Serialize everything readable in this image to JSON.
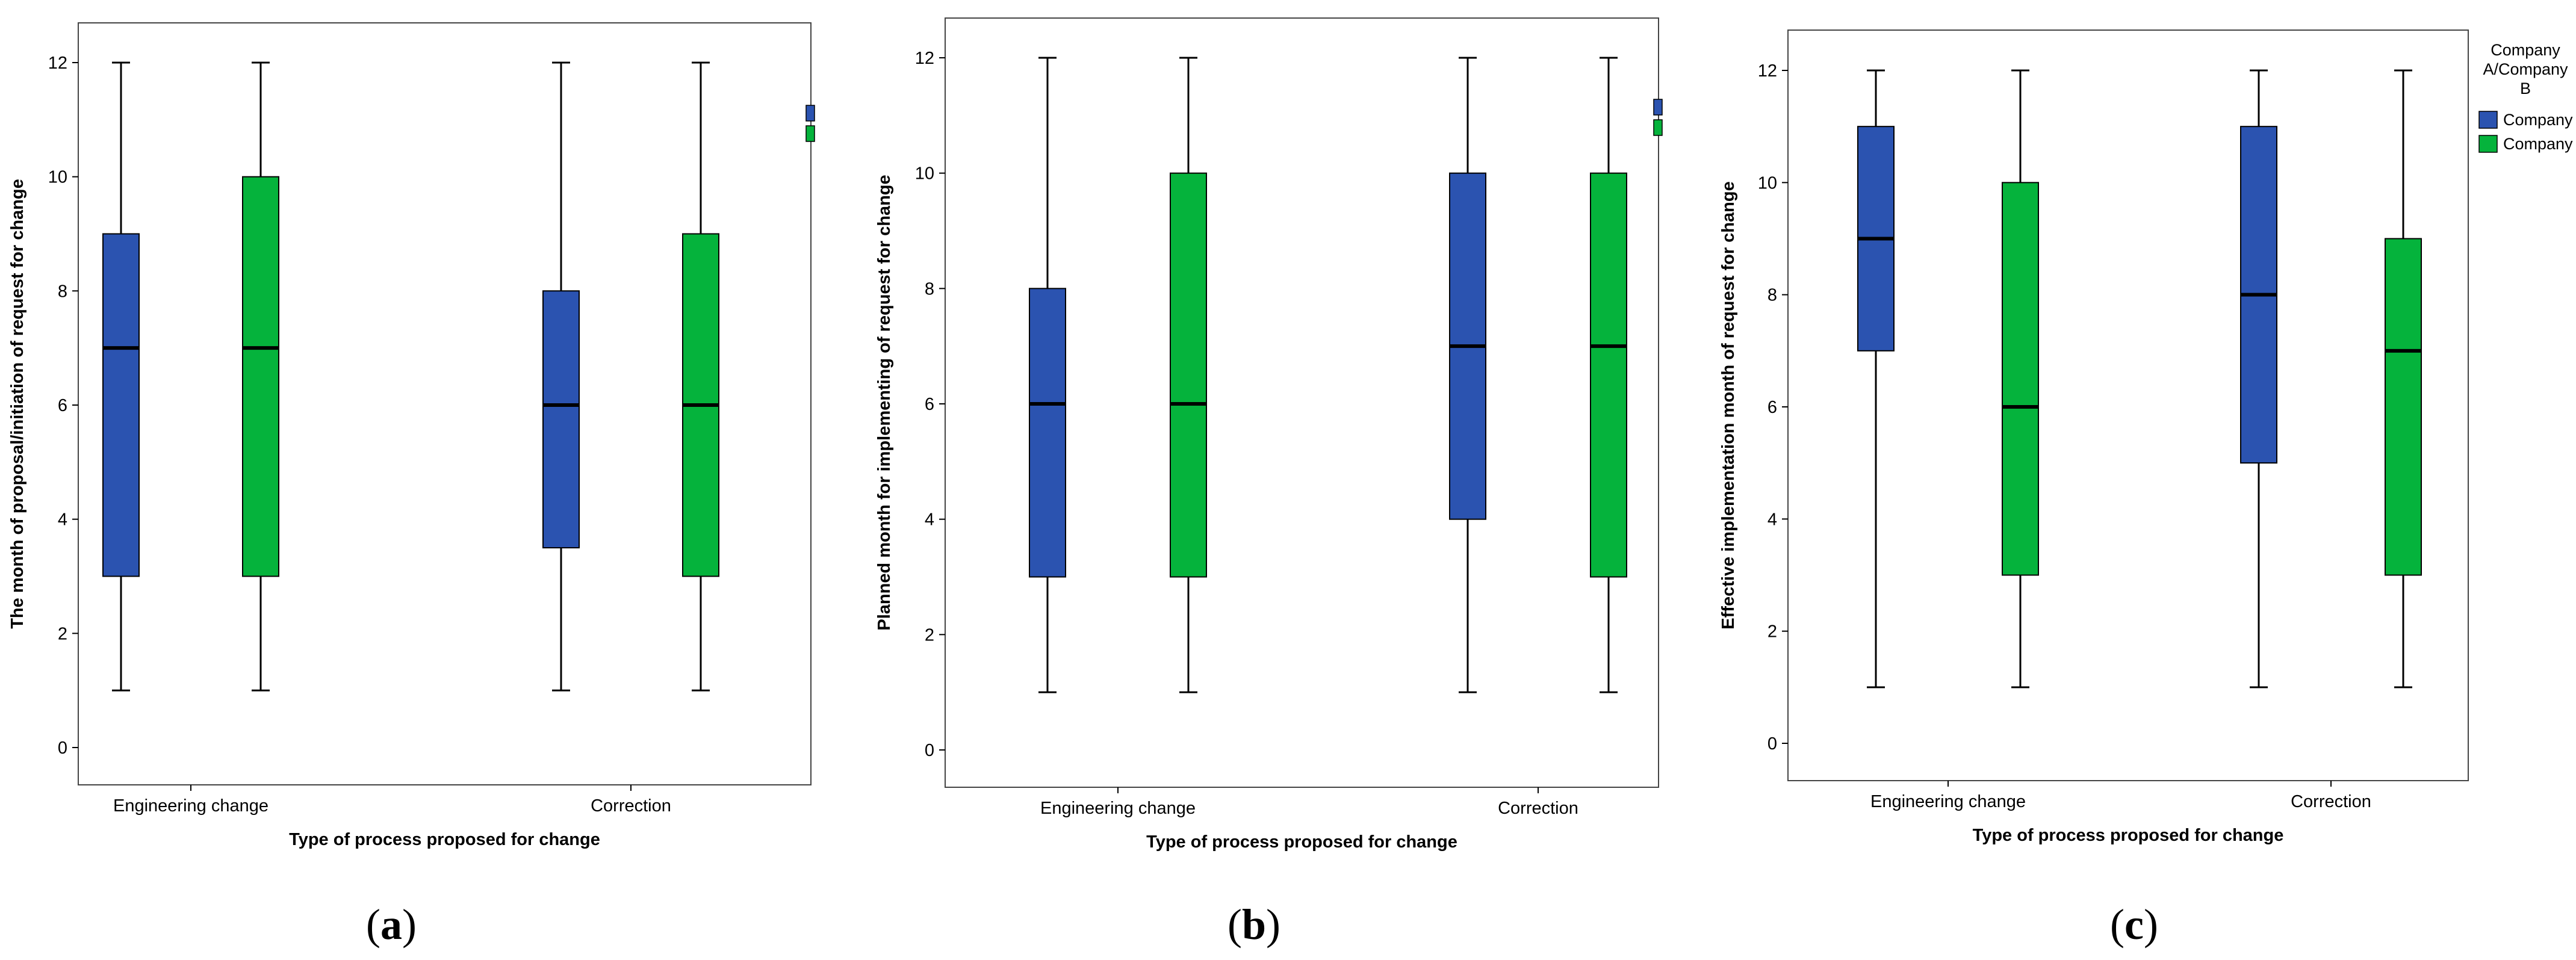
{
  "chart_data": [
    {
      "type": "box",
      "panel_label": "a",
      "xlabel": "Type of process proposed for change",
      "ylabel": "The month of proposal/initiation of request for change",
      "ylim": [
        0,
        12
      ],
      "yticks": [
        0,
        2,
        4,
        6,
        8,
        10,
        12
      ],
      "categories": [
        "Engineering change",
        "Correction"
      ],
      "series": [
        {
          "name": "Company A",
          "boxes": [
            {
              "min": 1,
              "q1": 3,
              "median": 7,
              "q3": 9,
              "max": 12
            },
            {
              "min": 1,
              "q1": 3.5,
              "median": 6,
              "q3": 8,
              "max": 12
            }
          ]
        },
        {
          "name": "Company B",
          "boxes": [
            {
              "min": 1,
              "q1": 3,
              "median": 7,
              "q3": 10,
              "max": 12
            },
            {
              "min": 1,
              "q1": 3,
              "median": 6,
              "q3": 9,
              "max": 12
            }
          ]
        }
      ],
      "legend": "cropped"
    },
    {
      "type": "box",
      "panel_label": "b",
      "xlabel": "Type of process proposed for change",
      "ylabel": "Planned month for implementing of request for change",
      "ylim": [
        0,
        12
      ],
      "yticks": [
        0,
        2,
        4,
        6,
        8,
        10,
        12
      ],
      "categories": [
        "Engineering change",
        "Correction"
      ],
      "series": [
        {
          "name": "Company A",
          "boxes": [
            {
              "min": 1,
              "q1": 3,
              "median": 6,
              "q3": 8,
              "max": 12
            },
            {
              "min": 1,
              "q1": 4,
              "median": 7,
              "q3": 10,
              "max": 12
            }
          ]
        },
        {
          "name": "Company B",
          "boxes": [
            {
              "min": 1,
              "q1": 3,
              "median": 6,
              "q3": 10,
              "max": 12
            },
            {
              "min": 1,
              "q1": 3,
              "median": 7,
              "q3": 10,
              "max": 12
            }
          ]
        }
      ],
      "legend": "cropped"
    },
    {
      "type": "box",
      "panel_label": "c",
      "xlabel": "Type of process proposed for change",
      "ylabel": "Effective implementation month of request for change",
      "ylim": [
        0,
        12
      ],
      "yticks": [
        0,
        2,
        4,
        6,
        8,
        10,
        12
      ],
      "categories": [
        "Engineering change",
        "Correction"
      ],
      "series": [
        {
          "name": "Company A",
          "boxes": [
            {
              "min": 1,
              "q1": 7,
              "median": 9,
              "q3": 11,
              "max": 12
            },
            {
              "min": 1,
              "q1": 5,
              "median": 8,
              "q3": 11,
              "max": 12
            }
          ]
        },
        {
          "name": "Company B",
          "boxes": [
            {
              "min": 1,
              "q1": 3,
              "median": 6,
              "q3": 10,
              "max": 12
            },
            {
              "min": 1,
              "q1": 3,
              "median": 7,
              "q3": 9,
              "max": 12
            }
          ]
        }
      ],
      "legend": "right",
      "legend_title_lines": [
        "Company",
        "A/Company",
        "B"
      ]
    }
  ],
  "colors": {
    "Company A": "#2b53b0",
    "Company B": "#05b33c"
  }
}
